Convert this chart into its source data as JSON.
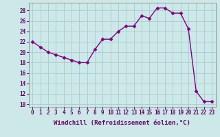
{
  "x": [
    0,
    1,
    2,
    3,
    4,
    5,
    6,
    7,
    8,
    9,
    10,
    11,
    12,
    13,
    14,
    15,
    16,
    17,
    18,
    19,
    20,
    21,
    22,
    23
  ],
  "y": [
    22,
    21,
    20,
    19.5,
    19,
    18.5,
    18,
    18,
    20.5,
    22.5,
    22.5,
    24,
    25,
    25,
    27,
    26.5,
    28.5,
    28.5,
    27.5,
    27.5,
    24.5,
    12.5,
    10.5,
    10.5
  ],
  "line_color": "#800080",
  "marker": "D",
  "markersize": 2.5,
  "linewidth": 1.0,
  "bg_color": "#cce8e8",
  "grid_color": "#aacccc",
  "xlabel": "Windchill (Refroidissement éolien,°C)",
  "xlabel_fontsize": 6.5,
  "xlim": [
    -0.5,
    23.5
  ],
  "ylim": [
    9.5,
    29.5
  ],
  "yticks": [
    10,
    12,
    14,
    16,
    18,
    20,
    22,
    24,
    26,
    28
  ],
  "xticks": [
    0,
    1,
    2,
    3,
    4,
    5,
    6,
    7,
    8,
    9,
    10,
    11,
    12,
    13,
    14,
    15,
    16,
    17,
    18,
    19,
    20,
    21,
    22,
    23
  ],
  "tick_fontsize": 5.5,
  "label_color": "#660066"
}
